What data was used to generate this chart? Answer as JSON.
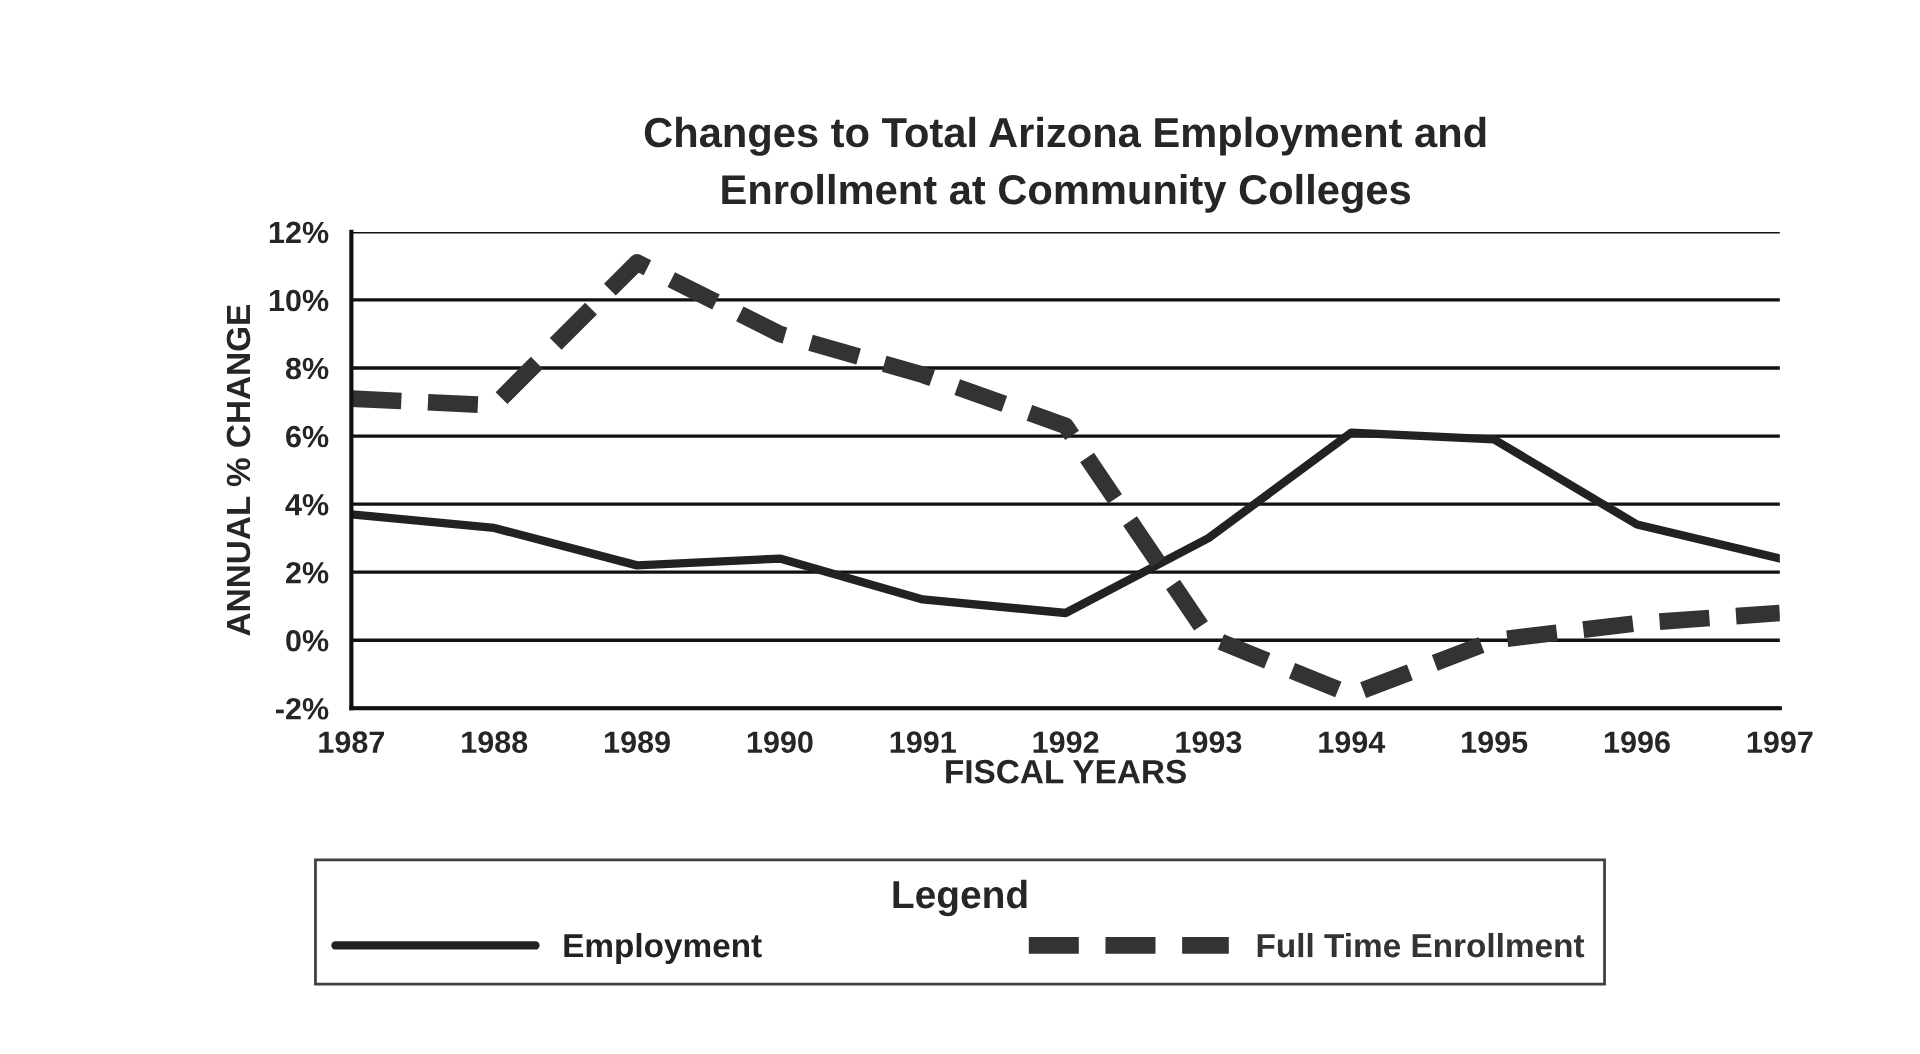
{
  "chart_data": {
    "type": "line",
    "title": "Changes to Total Arizona Employment and\nEnrollment at Community Colleges",
    "xlabel": "FISCAL YEARS",
    "ylabel": "ANNUAL % CHANGE",
    "x": [
      1987,
      1988,
      1989,
      1990,
      1991,
      1992,
      1993,
      1994,
      1995,
      1996,
      1997
    ],
    "series": [
      {
        "name": "Employment",
        "color": "#222222",
        "line_style": "solid",
        "values": [
          3.7,
          3.3,
          2.2,
          2.4,
          1.2,
          0.8,
          3.0,
          6.1,
          5.9,
          3.4,
          2.4
        ]
      },
      {
        "name": "Full Time Enrollment",
        "color": "#333333",
        "line_style": "dashed",
        "values": [
          7.1,
          6.9,
          11.1,
          9.0,
          7.8,
          6.3,
          0.1,
          -1.6,
          0.0,
          0.5,
          0.8
        ]
      }
    ],
    "xlim": [
      1987,
      1997
    ],
    "xticks": [
      1987,
      1988,
      1989,
      1990,
      1991,
      1992,
      1993,
      1994,
      1995,
      1996,
      1997
    ],
    "ylim": [
      -2,
      12
    ],
    "yticks": [
      {
        "value": -2,
        "label": "-2%"
      },
      {
        "value": 0,
        "label": "0%"
      },
      {
        "value": 2,
        "label": "2%"
      },
      {
        "value": 4,
        "label": "4%"
      },
      {
        "value": 6,
        "label": "6%"
      },
      {
        "value": 8,
        "label": "8%"
      },
      {
        "value": 10,
        "label": "10%"
      },
      {
        "value": 12,
        "label": "12%"
      }
    ],
    "grid": "y",
    "legend": "bottom",
    "legend_title": "Legend",
    "marker": "none"
  }
}
